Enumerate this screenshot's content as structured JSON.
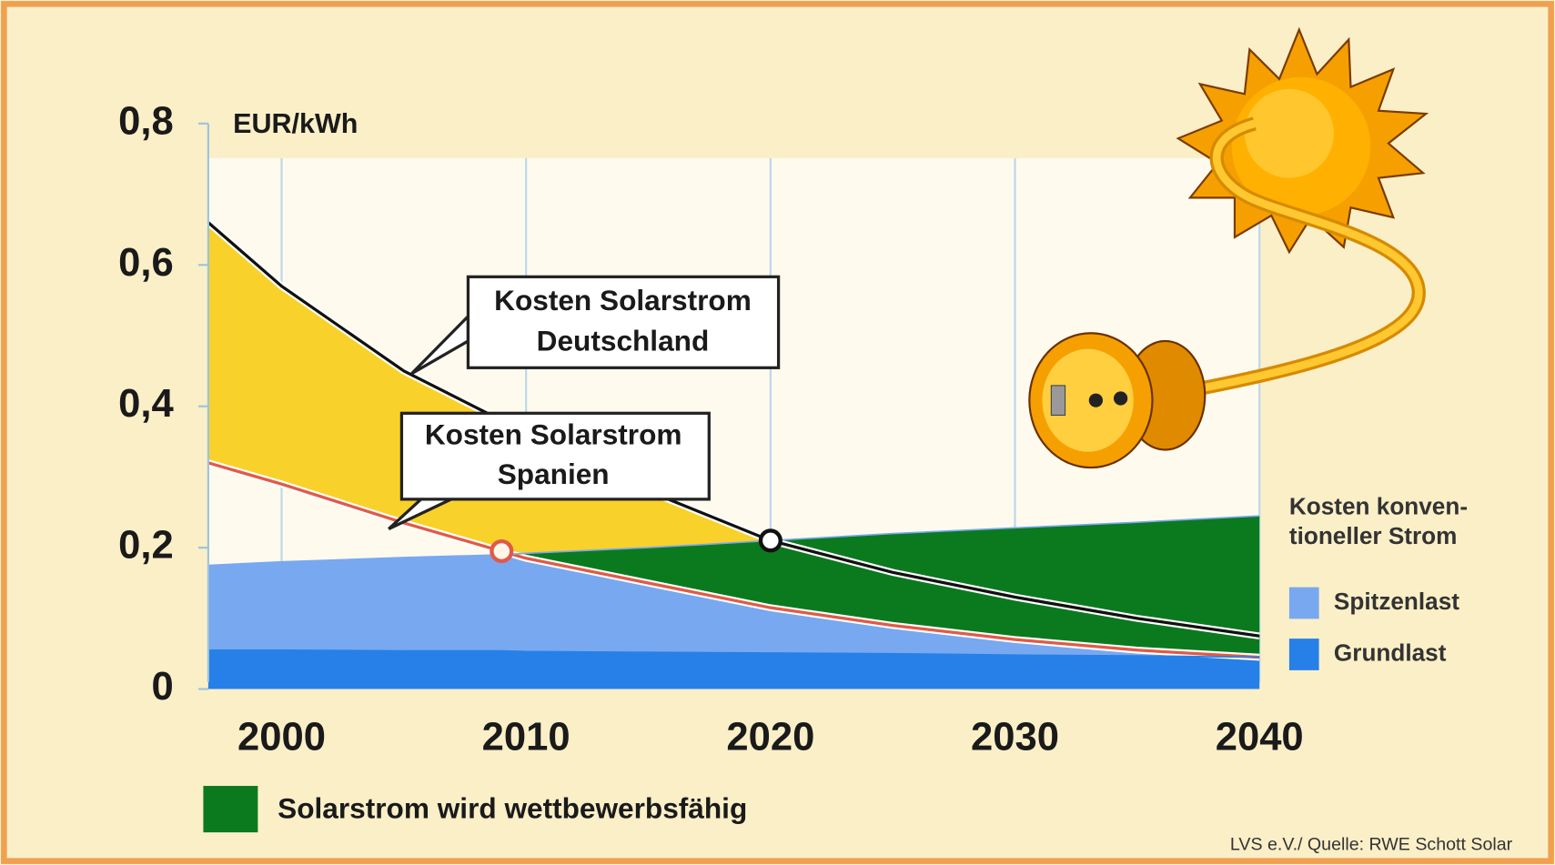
{
  "chart_data": {
    "type": "area",
    "y_label": "EUR/kWh",
    "x": [
      1997,
      2000,
      2005,
      2009,
      2010,
      2015,
      2020,
      2025,
      2030,
      2035,
      2040
    ],
    "xlim": [
      1997,
      2040
    ],
    "xticks": [
      2000,
      2010,
      2020,
      2030,
      2040
    ],
    "ylim": [
      0,
      0.8
    ],
    "yticks": [
      0,
      {
        "value": 0.2,
        "label": "0,2"
      },
      {
        "value": 0.4,
        "label": "0,4"
      },
      {
        "value": 0.6,
        "label": "0,6"
      },
      {
        "value": 0.8,
        "label": "0,8"
      }
    ],
    "grid": true,
    "series": [
      {
        "color": "#111111",
        "values": [
          0.66,
          0.57,
          0.45,
          0.38,
          0.36,
          0.28,
          0.21,
          0.165,
          0.13,
          0.1,
          0.075
        ]
      },
      {
        "color": "#e05a48",
        "values": [
          0.32,
          0.29,
          0.235,
          0.195,
          0.185,
          0.15,
          0.115,
          0.09,
          0.07,
          0.055,
          0.045
        ]
      },
      {
        "name": "Spitzenlast",
        "color": "#78a8f0",
        "values": [
          0.175,
          0.18,
          0.186,
          0.19,
          0.192,
          0.2,
          0.21,
          0.22,
          0.228,
          0.236,
          0.245
        ]
      },
      {
        "name": "Grundlast",
        "color": "#2680e8",
        "values": [
          0.055,
          0.055,
          0.054,
          0.054,
          0.053,
          0.052,
          0.051,
          0.05,
          0.048,
          0.047,
          0.045
        ]
      }
    ],
    "yellow_color": "#f8d12a",
    "competitive": {
      "label": "Solarstrom wird wettbewerbsfähig",
      "color": "#0b7a1e"
    },
    "annotations": [
      {
        "lines": [
          "Kosten Solarstrom",
          "Deutschland"
        ]
      },
      {
        "lines": [
          "Kosten Solarstrom",
          "Spanien"
        ]
      }
    ],
    "legend_title": [
      "Kosten konven-",
      "tioneller Strom"
    ],
    "source": "LVS e.V./ Quelle: RWE Schott Solar"
  }
}
